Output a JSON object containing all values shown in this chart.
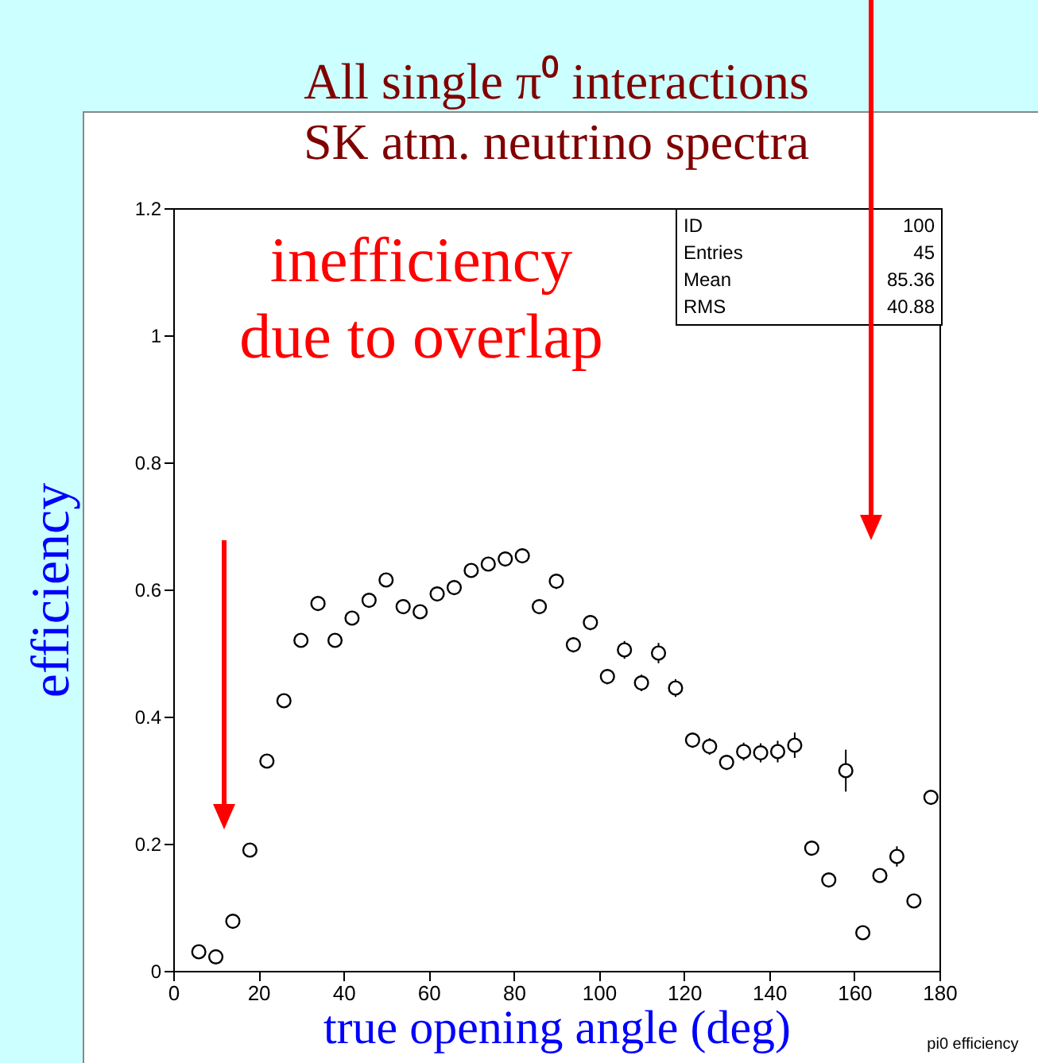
{
  "chart_data": {
    "type": "scatter",
    "title": "All single π⁰ interactions",
    "subtitle": "SK atm. neutrino spectra",
    "xlabel": "true opening angle (deg)",
    "ylabel": "efficiency",
    "x": [
      6,
      10,
      14,
      18,
      22,
      26,
      30,
      34,
      38,
      42,
      46,
      50,
      54,
      58,
      62,
      66,
      70,
      74,
      78,
      82,
      86,
      90,
      94,
      98,
      102,
      106,
      110,
      114,
      118,
      122,
      126,
      130,
      134,
      138,
      142,
      146,
      150,
      154,
      158,
      162,
      166,
      170,
      174,
      178
    ],
    "series": [
      {
        "color": "#000000",
        "marker": "circle",
        "values": [
          0.03,
          0.022,
          0.078,
          0.19,
          0.33,
          0.425,
          0.52,
          0.578,
          0.52,
          0.555,
          0.583,
          0.615,
          0.573,
          0.565,
          0.593,
          0.603,
          0.63,
          0.64,
          0.648,
          0.653,
          0.573,
          0.613,
          0.513,
          0.548,
          0.463,
          0.505,
          0.453,
          0.5,
          0.445,
          0.363,
          0.353,
          0.328,
          0.345,
          0.343,
          0.345,
          0.355,
          0.193,
          0.143,
          0.315,
          0.06,
          0.15,
          0.18,
          0.11,
          0.273
        ],
        "errors": [
          0.005,
          0.005,
          0.007,
          0.008,
          0.01,
          0.01,
          0.01,
          0.01,
          0.01,
          0.01,
          0.01,
          0.01,
          0.01,
          0.01,
          0.01,
          0.01,
          0.01,
          0.01,
          0.01,
          0.01,
          0.01,
          0.012,
          0.012,
          0.012,
          0.012,
          0.014,
          0.013,
          0.016,
          0.014,
          0.012,
          0.013,
          0.012,
          0.014,
          0.015,
          0.017,
          0.02,
          0.01,
          0.01,
          0.033,
          0.008,
          0.01,
          0.016,
          0.01,
          0.01
        ]
      }
    ],
    "xlim": [
      0,
      180
    ],
    "xticks": [
      0,
      20,
      40,
      60,
      80,
      100,
      120,
      140,
      160,
      180
    ],
    "ylim": [
      0,
      1.2
    ],
    "yticks": [
      0,
      0.2,
      0.4,
      0.6,
      0.8,
      1,
      1.2
    ],
    "grid": false,
    "annotations": [
      "inefficiency\ndue to overlap",
      "ID 100",
      "Entries 45",
      "Mean 85.36",
      "RMS 40.88",
      "pi0 efficiency"
    ]
  }
}
